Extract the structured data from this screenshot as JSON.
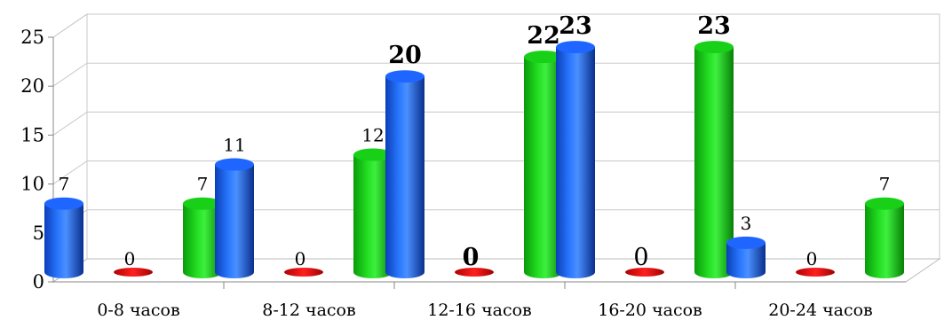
{
  "chart_data": {
    "type": "bar",
    "style": "3d-cylinder",
    "categories": [
      "0-8 часов",
      "8-12 часов",
      "12-16 часов",
      "16-20 часов",
      "20-24 часов"
    ],
    "series": [
      {
        "values": [
          7,
          11,
          20,
          23,
          3
        ],
        "color": "#1a5cff"
      },
      {
        "values": [
          0,
          0,
          0,
          0,
          0
        ],
        "color": "#e01010"
      },
      {
        "values": [
          7,
          12,
          22,
          23,
          7
        ],
        "color": "#10cc10"
      }
    ],
    "yticks": [
      0,
      5,
      10,
      15,
      20,
      25
    ],
    "ylim": [
      0,
      25
    ],
    "grid": true,
    "legend": "none"
  }
}
